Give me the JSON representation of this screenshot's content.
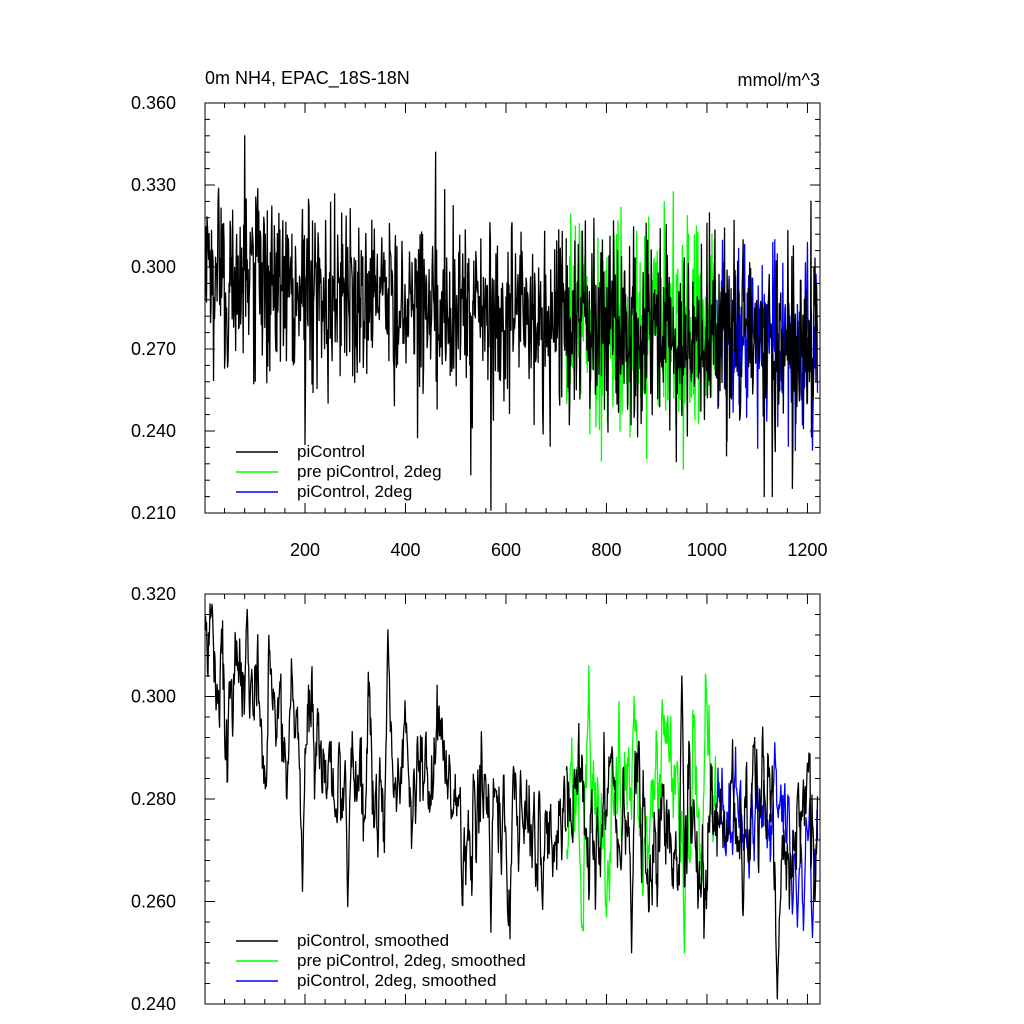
{
  "chart_data": [
    {
      "type": "line",
      "title_left": "0m NH4, EPAC_18S-18N",
      "title_right": "mmol/m^3",
      "xlim": [
        1,
        1225
      ],
      "ylim": [
        0.21,
        0.36
      ],
      "x_ticks": [
        200,
        400,
        600,
        800,
        1000,
        1200
      ],
      "x_tick_labels": [
        "200",
        "400",
        "600",
        "800",
        "1000",
        "1200"
      ],
      "y_ticks": [
        0.21,
        0.24,
        0.27,
        0.3,
        0.33,
        0.36
      ],
      "y_tick_labels": [
        "0.210",
        "0.240",
        "0.270",
        "0.300",
        "0.330",
        "0.360"
      ],
      "legend_position": "bottom-left",
      "grid": false,
      "series": [
        {
          "name": "piControl",
          "color": "#000000",
          "x_start": 1,
          "x_end": 720,
          "mean": 0.287,
          "std": 0.017,
          "trend": [
            [
              1,
              0.296
            ],
            [
              300,
              0.291
            ],
            [
              600,
              0.281
            ],
            [
              720,
              0.28
            ]
          ],
          "extremes": [
            [
              80,
              0.348
            ],
            [
              460,
              0.342
            ],
            [
              200,
              0.235
            ],
            [
              570,
              0.211
            ],
            [
              530,
              0.224
            ],
            [
              130,
              0.262
            ]
          ]
        },
        {
          "name": "pre piControl, 2deg",
          "color": "#00ff00",
          "x_start": 720,
          "x_end": 1020,
          "mean": 0.278,
          "std": 0.019,
          "trend": [
            [
              720,
              0.279
            ],
            [
              1020,
              0.276
            ]
          ],
          "extremes": [
            [
              738,
              0.315
            ],
            [
              860,
              0.313
            ],
            [
              953,
              0.226
            ],
            [
              790,
              0.229
            ],
            [
              880,
              0.23
            ]
          ]
        },
        {
          "name": "piControl, 2deg",
          "color": "#0000ff",
          "x_start": 1020,
          "x_end": 1220,
          "mean": 0.274,
          "std": 0.016,
          "trend": [
            [
              1020,
              0.275
            ],
            [
              1220,
              0.271
            ]
          ],
          "extremes": [
            [
              1135,
              0.31
            ],
            [
              1200,
              0.309
            ],
            [
              1130,
              0.23
            ],
            [
              1210,
              0.233
            ]
          ]
        },
        {
          "name": "piControl",
          "color": "#000000",
          "x_start": 720,
          "x_end": 1220,
          "mean": 0.276,
          "std": 0.018,
          "trend": [
            [
              720,
              0.28
            ],
            [
              1220,
              0.273
            ]
          ],
          "extremes": [
            [
              1000,
              0.316
            ],
            [
              1130,
              0.216
            ],
            [
              1170,
              0.219
            ],
            [
              1065,
              0.244
            ]
          ]
        }
      ]
    },
    {
      "type": "line",
      "xlim": [
        1,
        1225
      ],
      "ylim": [
        0.24,
        0.32
      ],
      "x_ticks": [
        200,
        400,
        600,
        800,
        1000,
        1200
      ],
      "y_ticks": [
        0.24,
        0.26,
        0.28,
        0.3,
        0.32
      ],
      "y_tick_labels": [
        "0.240",
        "0.260",
        "0.280",
        "0.300",
        "0.320"
      ],
      "legend_position": "bottom-left",
      "grid": false,
      "series": [
        {
          "name": "piControl, smoothed",
          "color": "#000000",
          "x_start": 1,
          "x_end": 720,
          "mean": 0.284,
          "std": 0.009,
          "trend": [
            [
              1,
              0.302
            ],
            [
              80,
              0.303
            ],
            [
              200,
              0.29
            ],
            [
              300,
              0.284
            ],
            [
              400,
              0.291
            ],
            [
              460,
              0.29
            ],
            [
              560,
              0.274
            ],
            [
              720,
              0.276
            ]
          ],
          "extremes": [
            [
              15,
              0.318
            ],
            [
              85,
              0.317
            ],
            [
              365,
              0.313
            ],
            [
              195,
              0.262
            ],
            [
              285,
              0.259
            ],
            [
              570,
              0.254
            ]
          ]
        },
        {
          "name": "pre piControl, 2deg, smoothed",
          "color": "#00ff00",
          "x_start": 720,
          "x_end": 1020,
          "mean": 0.277,
          "std": 0.01,
          "trend": [
            [
              720,
              0.28
            ],
            [
              1020,
              0.277
            ]
          ],
          "extremes": [
            [
              765,
              0.306
            ],
            [
              825,
              0.299
            ],
            [
              855,
              0.3
            ],
            [
              955,
              0.25
            ],
            [
              800,
              0.257
            ]
          ]
        },
        {
          "name": "piControl, 2deg, smoothed",
          "color": "#0000ff",
          "x_start": 1020,
          "x_end": 1220,
          "mean": 0.273,
          "std": 0.008,
          "trend": [
            [
              1020,
              0.278
            ],
            [
              1220,
              0.272
            ]
          ],
          "extremes": [
            [
              1030,
              0.286
            ],
            [
              1135,
              0.291
            ],
            [
              1210,
              0.253
            ],
            [
              1180,
              0.255
            ]
          ]
        },
        {
          "name": "piControl, smoothed",
          "color": "#000000",
          "x_start": 720,
          "x_end": 1220,
          "mean": 0.274,
          "std": 0.01,
          "trend": [
            [
              720,
              0.277
            ],
            [
              1220,
              0.272
            ]
          ],
          "extremes": [
            [
              950,
              0.304
            ],
            [
              1200,
              0.287
            ],
            [
              1140,
              0.241
            ],
            [
              850,
              0.25
            ]
          ]
        }
      ]
    }
  ],
  "legends": [
    {
      "items": [
        {
          "label": "piControl",
          "color": "#000000"
        },
        {
          "label": "pre piControl, 2deg",
          "color": "#00ff00"
        },
        {
          "label": "piControl, 2deg",
          "color": "#0000ff"
        }
      ]
    },
    {
      "items": [
        {
          "label": "piControl, smoothed",
          "color": "#000000"
        },
        {
          "label": "pre piControl, 2deg, smoothed",
          "color": "#00ff00"
        },
        {
          "label": "piControl, 2deg, smoothed",
          "color": "#0000ff"
        }
      ]
    }
  ]
}
